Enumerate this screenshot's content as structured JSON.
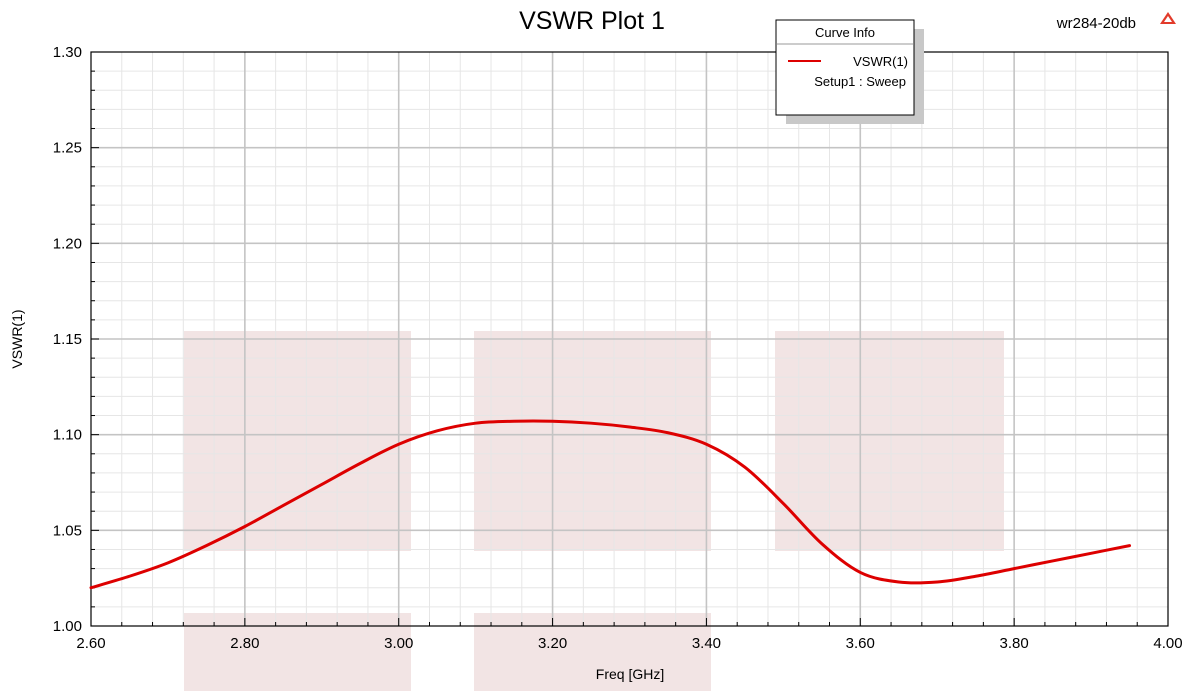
{
  "chart_data": {
    "type": "line",
    "title": "VSWR Plot 1",
    "xlabel": "Freq [GHz]",
    "ylabel": "VSWR(1)",
    "xlim": [
      2.6,
      4.0
    ],
    "ylim": [
      1.0,
      1.3
    ],
    "x_ticks": [
      "2.60",
      "2.80",
      "3.00",
      "3.20",
      "3.40",
      "3.60",
      "3.80",
      "4.00"
    ],
    "y_ticks": [
      "1.00",
      "1.05",
      "1.10",
      "1.15",
      "1.20",
      "1.25",
      "1.30"
    ],
    "grid": true,
    "legend_position": "top-right",
    "series": [
      {
        "name": "VSWR(1)",
        "color": "#dd0000",
        "x": [
          2.6,
          2.65,
          2.7,
          2.75,
          2.8,
          2.85,
          2.9,
          2.95,
          3.0,
          3.05,
          3.1,
          3.15,
          3.2,
          3.25,
          3.3,
          3.35,
          3.4,
          3.45,
          3.5,
          3.55,
          3.6,
          3.65,
          3.7,
          3.75,
          3.8,
          3.85,
          3.9,
          3.95
        ],
        "values": [
          1.02,
          1.026,
          1.033,
          1.042,
          1.052,
          1.063,
          1.074,
          1.085,
          1.095,
          1.102,
          1.106,
          1.107,
          1.107,
          1.106,
          1.104,
          1.101,
          1.095,
          1.083,
          1.064,
          1.043,
          1.028,
          1.023,
          1.023,
          1.026,
          1.03,
          1.034,
          1.038,
          1.042
        ]
      }
    ]
  },
  "legend": {
    "header": "Curve Info",
    "entry_name": "VSWR(1)",
    "entry_subtitle": "Setup1 : Sweep"
  },
  "project_name": "wr284-20db",
  "colors": {
    "curve": "#dd0000",
    "watermark": "#f2e4e4",
    "grid_major": "#c4c4c4",
    "grid_minor": "#e6e6e6",
    "logo": "#e23a2a"
  }
}
